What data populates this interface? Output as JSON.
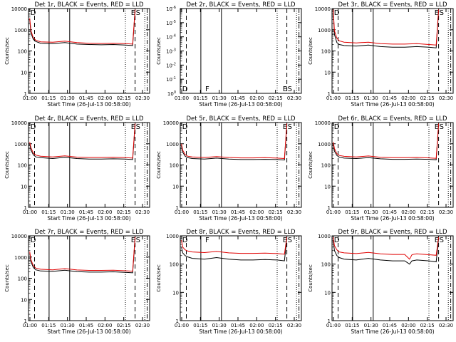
{
  "figure": {
    "start_time_label": "Start Time (26-Jul-13 00:58:00)"
  },
  "chart_data": [
    {
      "type": "line",
      "title": "Det 1r, BLACK = Events, RED = LLD",
      "xlabel": "Start Time (26-Jul-13 00:58:00)",
      "ylabel": "Counts/sec",
      "scale": "log",
      "x_ticks": [
        "01:00",
        "01:15",
        "01:30",
        "01:45",
        "02:00",
        "02:15",
        "02:30"
      ],
      "y_ticks": [
        "1",
        "10",
        "100",
        "1000",
        "10000"
      ],
      "ylim": [
        1,
        10000
      ],
      "xlim_min": [
        0,
        100
      ],
      "markers": [
        {
          "label": "D",
          "t": 1
        },
        {
          "label": "E",
          "t": 84
        },
        {
          "label": "S",
          "t": 88
        }
      ],
      "solid_vlines": [
        17,
        34
      ],
      "dotted_vlines": [
        80,
        96
      ],
      "dashed_vlines": [
        5,
        88
      ],
      "dashdot_vlines": [
        98
      ],
      "series": [
        {
          "name": "BLACK = Events",
          "x": [
            1,
            2,
            4,
            6,
            10,
            20,
            30,
            40,
            50,
            60,
            70,
            80,
            86,
            88
          ],
          "values": [
            3000,
            700,
            350,
            280,
            230,
            220,
            250,
            210,
            200,
            195,
            200,
            190,
            180,
            8000
          ]
        },
        {
          "name": "RED = LLD",
          "x": [
            1,
            2,
            4,
            6,
            10,
            20,
            30,
            40,
            50,
            60,
            70,
            80,
            86,
            88
          ],
          "values": [
            3500,
            900,
            420,
            320,
            270,
            260,
            290,
            250,
            230,
            225,
            230,
            220,
            210,
            9000
          ]
        }
      ]
    },
    {
      "type": "line",
      "title": "Det 2r, BLACK = Events, RED = LLD",
      "xlabel": "Start Time (26-Jul-13 00:58:00)",
      "ylabel": "Counts/sec",
      "scale": "log",
      "x_ticks": [
        "01:00",
        "01:15",
        "01:30",
        "01:45",
        "02:00",
        "02:15",
        "02:30"
      ],
      "y_ticks": [
        "10^0",
        "10^-1",
        "10^-2",
        "10^-3",
        "10^-4",
        "10^-5",
        "10^-6"
      ],
      "ylim": [
        1,
        1e-06
      ],
      "markers": [
        {
          "label": "D",
          "t": 1
        },
        {
          "label": "F",
          "t": 20
        },
        {
          "label": "E",
          "t": 84
        },
        {
          "label": "S",
          "t": 88
        }
      ],
      "solid_vlines": [
        17,
        34
      ],
      "dotted_vlines": [
        80,
        96
      ],
      "dashed_vlines": [
        5,
        88
      ],
      "dashdot_vlines": [
        98
      ],
      "series": []
    },
    {
      "type": "line",
      "title": "Det 3r, BLACK = Events, RED = LLD",
      "xlabel": "Start Time (26-Jul-13 00:58:00)",
      "ylabel": "Counts/sec",
      "scale": "log",
      "x_ticks": [
        "01:00",
        "01:15",
        "01:30",
        "01:45",
        "02:00",
        "02:15",
        "02:30"
      ],
      "y_ticks": [
        "1",
        "10",
        "100",
        "1000",
        "10000"
      ],
      "ylim": [
        1,
        10000
      ],
      "markers": [
        {
          "label": "D",
          "t": 1
        },
        {
          "label": "E",
          "t": 84
        },
        {
          "label": "S",
          "t": 88
        }
      ],
      "solid_vlines": [
        17,
        34
      ],
      "dotted_vlines": [
        80,
        96
      ],
      "dashed_vlines": [
        5,
        88
      ],
      "dashdot_vlines": [
        98
      ],
      "series": [
        {
          "name": "BLACK = Events",
          "x": [
            1,
            2,
            4,
            6,
            10,
            20,
            30,
            40,
            50,
            60,
            70,
            80,
            86,
            88
          ],
          "values": [
            8000,
            600,
            250,
            200,
            180,
            170,
            190,
            160,
            150,
            150,
            160,
            150,
            140,
            8000
          ]
        },
        {
          "name": "RED = LLD",
          "x": [
            1,
            2,
            4,
            6,
            10,
            20,
            30,
            40,
            50,
            60,
            70,
            80,
            86,
            88
          ],
          "values": [
            9000,
            900,
            400,
            300,
            260,
            240,
            260,
            220,
            210,
            210,
            220,
            200,
            190,
            9000
          ]
        }
      ]
    },
    {
      "type": "line",
      "title": "Det 4r, BLACK = Events, RED = LLD",
      "xlabel": "Start Time (26-Jul-13 00:58:00)",
      "ylabel": "Counts/sec",
      "scale": "log",
      "x_ticks": [
        "01:00",
        "01:15",
        "01:30",
        "01:45",
        "02:00",
        "02:15",
        "02:30"
      ],
      "y_ticks": [
        "1",
        "10",
        "100",
        "1000",
        "10000"
      ],
      "ylim": [
        1,
        10000
      ],
      "markers": [
        {
          "label": "D",
          "t": 1
        },
        {
          "label": "E",
          "t": 84
        },
        {
          "label": "S",
          "t": 88
        }
      ],
      "solid_vlines": [
        17,
        34
      ],
      "dotted_vlines": [
        80,
        96
      ],
      "dashed_vlines": [
        5,
        88
      ],
      "dashdot_vlines": [
        98
      ],
      "series": [
        {
          "name": "BLACK = Events",
          "x": [
            1,
            2,
            4,
            6,
            10,
            20,
            30,
            40,
            50,
            60,
            70,
            80,
            86,
            88
          ],
          "values": [
            1000,
            500,
            300,
            240,
            220,
            200,
            230,
            200,
            190,
            190,
            195,
            190,
            180,
            8000
          ]
        },
        {
          "name": "RED = LLD",
          "x": [
            1,
            2,
            4,
            6,
            10,
            20,
            30,
            40,
            50,
            60,
            70,
            80,
            86,
            88
          ],
          "values": [
            1200,
            650,
            360,
            290,
            260,
            240,
            270,
            235,
            225,
            225,
            230,
            220,
            210,
            9000
          ]
        }
      ]
    },
    {
      "type": "line",
      "title": "Det 5r, BLACK = Events, RED = LLD",
      "xlabel": "Start Time (26-Jul-13 00:58:00)",
      "ylabel": "Counts/sec",
      "scale": "log",
      "x_ticks": [
        "01:00",
        "01:15",
        "01:30",
        "01:45",
        "02:00",
        "02:15",
        "02:30"
      ],
      "y_ticks": [
        "1",
        "10",
        "100",
        "1000",
        "10000"
      ],
      "ylim": [
        1,
        10000
      ],
      "markers": [
        {
          "label": "D",
          "t": 1
        },
        {
          "label": "E",
          "t": 84
        },
        {
          "label": "S",
          "t": 88
        }
      ],
      "solid_vlines": [
        17,
        34
      ],
      "dotted_vlines": [
        80,
        96
      ],
      "dashed_vlines": [
        5,
        88
      ],
      "dashdot_vlines": [
        98
      ],
      "series": [
        {
          "name": "BLACK = Events",
          "x": [
            1,
            2,
            4,
            6,
            10,
            20,
            30,
            40,
            50,
            60,
            70,
            80,
            86,
            88
          ],
          "values": [
            800,
            400,
            260,
            220,
            200,
            190,
            210,
            190,
            180,
            180,
            185,
            180,
            170,
            8000
          ]
        },
        {
          "name": "RED = LLD",
          "x": [
            1,
            2,
            4,
            6,
            10,
            20,
            30,
            40,
            50,
            60,
            70,
            80,
            86,
            88
          ],
          "values": [
            1000,
            500,
            310,
            260,
            240,
            225,
            250,
            225,
            215,
            215,
            220,
            210,
            200,
            9000
          ]
        }
      ]
    },
    {
      "type": "line",
      "title": "Det 6r, BLACK = Events, RED = LLD",
      "xlabel": "Start Time (26-Jul-13 00:58:00)",
      "ylabel": "Counts/sec",
      "scale": "log",
      "x_ticks": [
        "01:00",
        "01:15",
        "01:30",
        "01:45",
        "02:00",
        "02:15",
        "02:30"
      ],
      "y_ticks": [
        "1",
        "10",
        "100",
        "1000",
        "10000"
      ],
      "ylim": [
        1,
        10000
      ],
      "markers": [
        {
          "label": "D",
          "t": 1
        },
        {
          "label": "E",
          "t": 84
        },
        {
          "label": "S",
          "t": 88
        }
      ],
      "solid_vlines": [
        17,
        34
      ],
      "dotted_vlines": [
        80,
        96
      ],
      "dashed_vlines": [
        5,
        88
      ],
      "dashdot_vlines": [
        98
      ],
      "series": [
        {
          "name": "BLACK = Events",
          "x": [
            1,
            2,
            4,
            6,
            10,
            20,
            30,
            40,
            50,
            60,
            70,
            80,
            86,
            88
          ],
          "values": [
            1000,
            450,
            280,
            230,
            210,
            200,
            220,
            195,
            185,
            185,
            190,
            185,
            175,
            8000
          ]
        },
        {
          "name": "RED = LLD",
          "x": [
            1,
            2,
            4,
            6,
            10,
            20,
            30,
            40,
            50,
            60,
            70,
            80,
            86,
            88
          ],
          "values": [
            1200,
            600,
            340,
            280,
            255,
            240,
            265,
            230,
            220,
            220,
            225,
            215,
            205,
            9000
          ]
        }
      ]
    },
    {
      "type": "line",
      "title": "Det 7r, BLACK = Events, RED = LLD",
      "xlabel": "Start Time (26-Jul-13 00:58:00)",
      "ylabel": "Counts/sec",
      "scale": "log",
      "x_ticks": [
        "01:00",
        "01:15",
        "01:30",
        "01:45",
        "02:00",
        "02:15",
        "02:30"
      ],
      "y_ticks": [
        "1",
        "10",
        "100",
        "1000",
        "10000"
      ],
      "ylim": [
        1,
        10000
      ],
      "markers": [
        {
          "label": "D",
          "t": 1
        },
        {
          "label": "E",
          "t": 84
        },
        {
          "label": "S",
          "t": 88
        }
      ],
      "solid_vlines": [
        17,
        34
      ],
      "dotted_vlines": [
        80,
        96
      ],
      "dashed_vlines": [
        5,
        88
      ],
      "dashdot_vlines": [
        98
      ],
      "series": [
        {
          "name": "BLACK = Events",
          "x": [
            1,
            2,
            4,
            6,
            10,
            20,
            30,
            40,
            50,
            60,
            70,
            80,
            86,
            88
          ],
          "values": [
            1500,
            600,
            320,
            250,
            220,
            210,
            240,
            205,
            195,
            195,
            200,
            190,
            180,
            8000
          ]
        },
        {
          "name": "RED = LLD",
          "x": [
            1,
            2,
            4,
            6,
            10,
            20,
            30,
            40,
            50,
            60,
            70,
            80,
            86,
            88
          ],
          "values": [
            1800,
            750,
            390,
            300,
            265,
            250,
            285,
            245,
            235,
            235,
            240,
            225,
            215,
            9000
          ]
        }
      ]
    },
    {
      "type": "line",
      "title": "Det 8r, BLACK = Events, RED = LLD",
      "xlabel": "Start Time (26-Jul-13 00:58:00)",
      "ylabel": "Counts/sec",
      "scale": "log",
      "x_ticks": [
        "01:00",
        "01:15",
        "01:30",
        "01:45",
        "02:00",
        "02:15",
        "02:30"
      ],
      "y_ticks": [
        "1",
        "10",
        "100",
        "1000"
      ],
      "ylim": [
        1,
        1000
      ],
      "markers": [
        {
          "label": "D",
          "t": 1
        },
        {
          "label": "F",
          "t": 20
        },
        {
          "label": "E",
          "t": 84
        },
        {
          "label": "S",
          "t": 88
        }
      ],
      "solid_vlines": [
        17,
        34
      ],
      "dotted_vlines": [
        80,
        96
      ],
      "dashed_vlines": [
        5,
        88
      ],
      "dashdot_vlines": [
        98
      ],
      "series": [
        {
          "name": "BLACK = Events",
          "x": [
            1,
            2,
            4,
            6,
            10,
            20,
            30,
            40,
            50,
            60,
            70,
            80,
            86,
            88
          ],
          "values": [
            400,
            250,
            200,
            180,
            160,
            150,
            170,
            150,
            140,
            140,
            145,
            140,
            130,
            800
          ]
        },
        {
          "name": "RED = LLD",
          "x": [
            1,
            2,
            4,
            6,
            10,
            20,
            30,
            40,
            50,
            60,
            70,
            80,
            86,
            88
          ],
          "values": [
            700,
            400,
            320,
            290,
            270,
            255,
            280,
            250,
            240,
            240,
            245,
            235,
            225,
            900
          ]
        }
      ]
    },
    {
      "type": "line",
      "title": "Det 9r, BLACK = Events, RED = LLD",
      "xlabel": "Start Time (26-Jul-13 00:58:00)",
      "ylabel": "Counts/sec",
      "scale": "log",
      "x_ticks": [
        "01:00",
        "01:15",
        "01:30",
        "01:45",
        "02:00",
        "02:15",
        "02:30"
      ],
      "y_ticks": [
        "1",
        "10",
        "100",
        "1000"
      ],
      "ylim": [
        1,
        1000
      ],
      "markers": [
        {
          "label": "D",
          "t": 1
        },
        {
          "label": "E",
          "t": 84
        },
        {
          "label": "S",
          "t": 88
        }
      ],
      "solid_vlines": [
        17,
        34
      ],
      "dotted_vlines": [
        80,
        96
      ],
      "dashed_vlines": [
        5,
        88
      ],
      "dashdot_vlines": [
        98
      ],
      "series": [
        {
          "name": "BLACK = Events",
          "x": [
            1,
            2,
            4,
            6,
            10,
            20,
            30,
            40,
            50,
            60,
            64,
            66,
            68,
            70,
            80,
            86,
            88
          ],
          "values": [
            700,
            300,
            200,
            170,
            150,
            140,
            160,
            140,
            130,
            130,
            100,
            130,
            135,
            140,
            130,
            120,
            800
          ]
        },
        {
          "name": "RED = LLD",
          "x": [
            1,
            2,
            4,
            6,
            10,
            20,
            30,
            40,
            50,
            60,
            64,
            66,
            68,
            70,
            80,
            86,
            88
          ],
          "values": [
            900,
            450,
            320,
            270,
            250,
            235,
            260,
            230,
            220,
            220,
            150,
            215,
            225,
            230,
            215,
            205,
            900
          ]
        }
      ]
    }
  ]
}
